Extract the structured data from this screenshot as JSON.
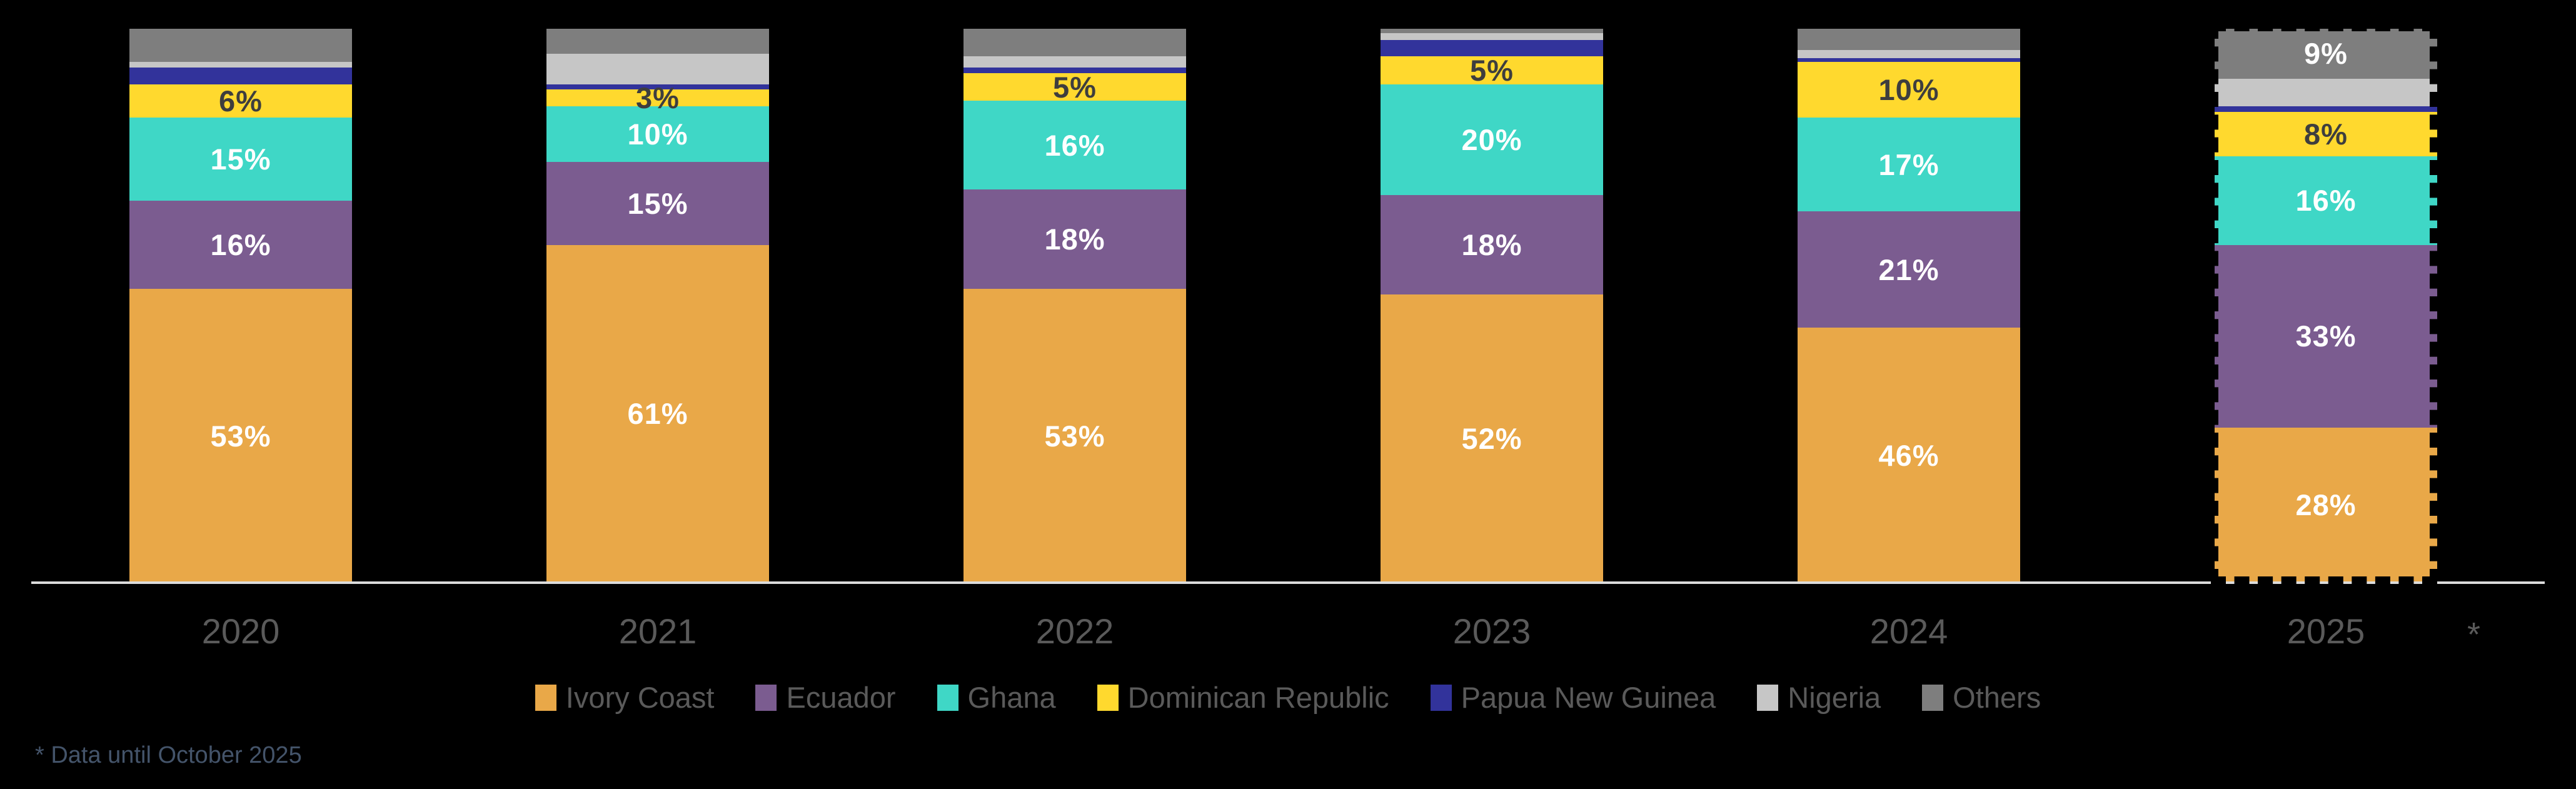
{
  "chart_data": {
    "type": "bar",
    "variant": "stacked-100-percent",
    "unit": "%",
    "title": "",
    "xlabel": "",
    "ylabel": "",
    "ylim": [
      0,
      100
    ],
    "gridlines": false,
    "background_color": "#000000",
    "axis_line_color": "#DCDCDC",
    "category_label_color": "#5A5A5A",
    "legend_position": "bottom",
    "legend_text_color": "#5A5A5A",
    "categories": [
      "2020",
      "2021",
      "2022",
      "2023",
      "2024",
      "2025"
    ],
    "series": [
      {
        "name": "Ivory Coast",
        "color": "#E9A848",
        "label_color": "#FFFFFF",
        "values": [
          53,
          61,
          53,
          52,
          46,
          28
        ],
        "labels": [
          "53%",
          "61%",
          "53%",
          "52%",
          "46%",
          "28%"
        ]
      },
      {
        "name": "Ecuador",
        "color": "#7B5C90",
        "label_color": "#FFFFFF",
        "values": [
          16,
          15,
          18,
          18,
          21,
          33
        ],
        "labels": [
          "16%",
          "15%",
          "18%",
          "18%",
          "21%",
          "33%"
        ]
      },
      {
        "name": "Ghana",
        "color": "#3FD7C6",
        "label_color": "#FFFFFF",
        "values": [
          15,
          10,
          16,
          20,
          17,
          16
        ],
        "labels": [
          "15%",
          "10%",
          "16%",
          "20%",
          "17%",
          "16%"
        ]
      },
      {
        "name": "Dominican Republic",
        "color": "#FFD92E",
        "label_color": "#3E3E3E",
        "values": [
          6,
          3,
          5,
          5,
          10,
          8
        ],
        "labels": [
          "6%",
          "3%",
          "5%",
          "5%",
          "10%",
          "8%"
        ]
      },
      {
        "name": "Papua New Guinea",
        "color": "#32339B",
        "label_color": "#FFFFFF",
        "values": [
          3,
          1,
          1,
          3,
          0.7,
          1
        ],
        "labels": [
          "",
          "",
          "",
          "",
          "",
          ""
        ]
      },
      {
        "name": "Nigeria",
        "color": "#C6C6C6",
        "label_color": "#3E3E3E",
        "values": [
          1,
          5.5,
          2,
          1.2,
          1.5,
          5
        ],
        "labels": [
          "",
          "",
          "",
          "",
          "",
          ""
        ]
      },
      {
        "name": "Others",
        "color": "#7E7E7E",
        "label_color": "#FFFFFF",
        "values": [
          6,
          4.5,
          5,
          0.8,
          3.8,
          9
        ],
        "labels": [
          "",
          "",
          "",
          "",
          "",
          "9%"
        ]
      }
    ],
    "highlight": {
      "category": "2025",
      "style": "black-dashed-outline"
    },
    "axis_note": "*",
    "footnote": "* Data until October 2025",
    "footnote_color": "#44546A"
  }
}
